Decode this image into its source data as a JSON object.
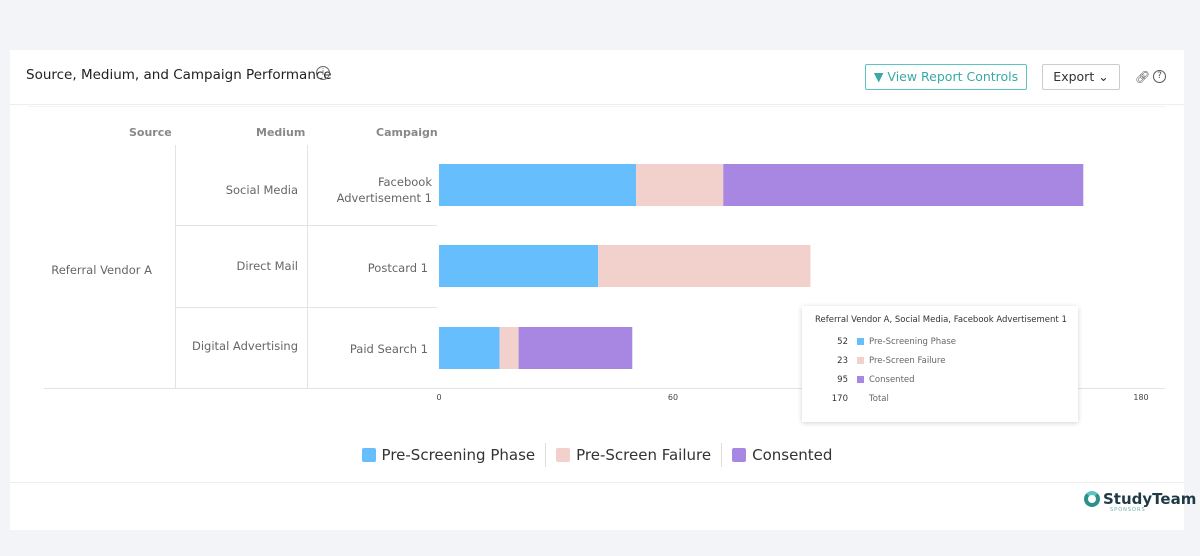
{
  "header": {
    "title": "Source, Medium, and Campaign Performance",
    "view_controls": "View Report Controls",
    "export": "Export",
    "export_chevron": "⌄",
    "link_icon": "link-icon",
    "help_icon": "help-icon",
    "info_icon": "info-icon"
  },
  "table": {
    "headers": [
      "Source",
      "Medium",
      "Campaign"
    ],
    "source": "Referral Vendor A",
    "rows": [
      {
        "medium": "Social Media",
        "campaign": "Facebook Advertisement 1"
      },
      {
        "medium": "Direct Mail",
        "campaign": "Postcard 1"
      },
      {
        "medium": "Digital Advertising",
        "campaign": "Paid Search 1"
      }
    ]
  },
  "chart_data": {
    "type": "bar",
    "orientation": "horizontal",
    "stacked": true,
    "categories": [
      "Facebook Advertisement 1",
      "Postcard 1",
      "Paid Search 1"
    ],
    "series": [
      {
        "name": "Pre-Screening Phase",
        "color": "#66bffc",
        "values": [
          52,
          42,
          16
        ]
      },
      {
        "name": "Pre-Screen Failure",
        "color": "#f2d0cb",
        "values": [
          23,
          56,
          5
        ]
      },
      {
        "name": "Consented",
        "color": "#a887e2",
        "values": [
          95,
          0,
          30
        ]
      }
    ],
    "xlim": [
      0,
      180
    ],
    "xticks": [
      "0",
      "60",
      "120",
      "180"
    ],
    "grid": false,
    "legend": "bottom"
  },
  "tooltip": {
    "title": "Referral Vendor A, Social Media, Facebook Advertisement 1",
    "rows": [
      {
        "value": "52",
        "label": "Pre-Screening Phase",
        "color": "#66bffc"
      },
      {
        "value": "23",
        "label": "Pre-Screen Failure",
        "color": "#f2d0cb"
      },
      {
        "value": "95",
        "label": "Consented",
        "color": "#a887e2"
      },
      {
        "value": "170",
        "label": "Total"
      }
    ]
  },
  "logo": {
    "name": "StudyTeam",
    "sub": "SPONSORS"
  }
}
